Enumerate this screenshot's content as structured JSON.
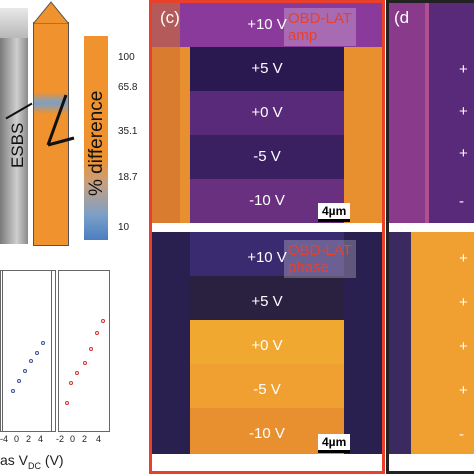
{
  "panel_b": {
    "label": "ESBS",
    "colorbar_title": "% difference",
    "colorbar_ticks": [
      "100",
      "65.8",
      "35.1",
      "18.7",
      "10"
    ],
    "colors": {
      "orange": "#f0922e",
      "blue": "#4a7fc0"
    }
  },
  "panel_c": {
    "letter": "(c)",
    "amp_tag": "OBD-LAT\namp",
    "phase_tag": "OBD-LAT\nphase",
    "voltages": [
      "+10 V",
      "+5 V",
      "+0 V",
      "-5 V",
      "-10 V"
    ],
    "scale_bar": "4µm",
    "border_color": "#e8402a"
  },
  "panel_d": {
    "letter": "(d",
    "amp_marks": [
      "+",
      "+",
      "+",
      "-5",
      "-"
    ],
    "phase_marks": [
      "+",
      "+",
      "+",
      "+",
      "-"
    ]
  },
  "bottom_plots": {
    "x_ticks": [
      "-4",
      "0",
      "2",
      "4",
      "-2",
      "0",
      "2",
      "4",
      "-2",
      "0",
      "2",
      "4"
    ],
    "xlabel": "as V",
    "xlabel_sub": "DC",
    "xlabel_unit": " (V)"
  }
}
